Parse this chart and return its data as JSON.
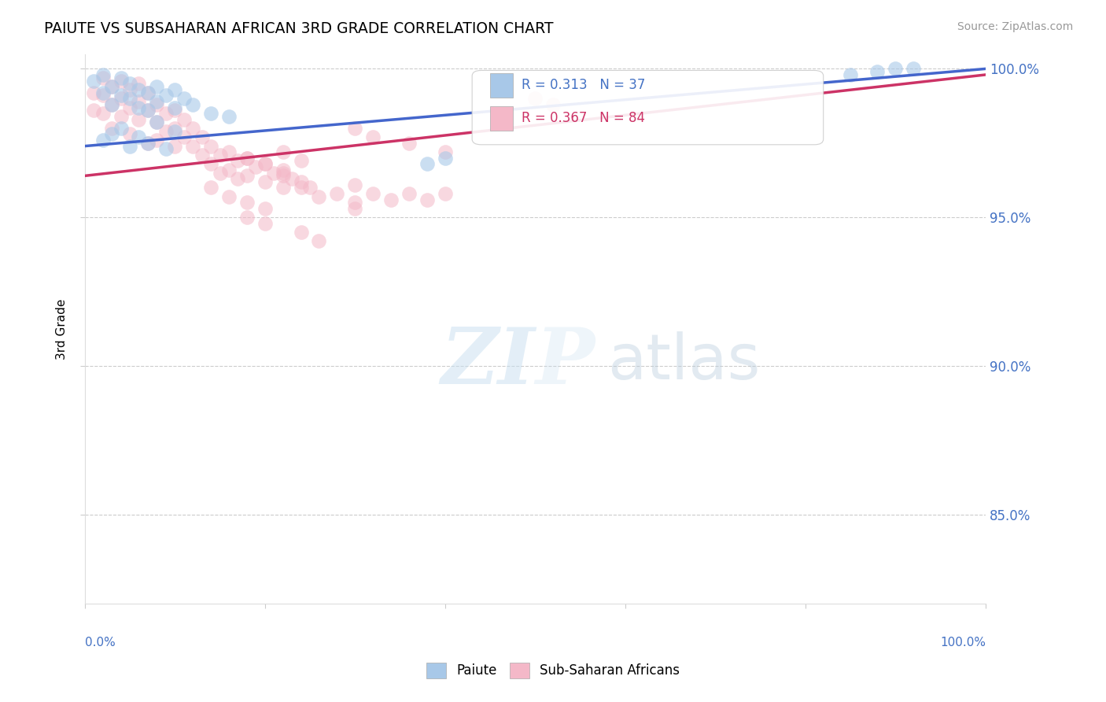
{
  "title": "PAIUTE VS SUBSAHARAN AFRICAN 3RD GRADE CORRELATION CHART",
  "source": "Source: ZipAtlas.com",
  "ylabel": "3rd Grade",
  "xlim": [
    0.0,
    1.0
  ],
  "ylim": [
    0.82,
    1.005
  ],
  "yticks": [
    0.85,
    0.9,
    0.95,
    1.0
  ],
  "ytick_labels": [
    "85.0%",
    "90.0%",
    "95.0%",
    "100.0%"
  ],
  "legend_entries": [
    "Paiute",
    "Sub-Saharan Africans"
  ],
  "blue_R": 0.313,
  "blue_N": 37,
  "pink_R": 0.367,
  "pink_N": 84,
  "blue_color": "#a8c8e8",
  "pink_color": "#f4b8c8",
  "blue_line_color": "#4466cc",
  "pink_line_color": "#cc3366",
  "blue_line_start_y": 0.974,
  "blue_line_end_y": 1.0,
  "pink_line_start_y": 0.964,
  "pink_line_end_y": 0.998,
  "blue_x": [
    0.01,
    0.02,
    0.02,
    0.03,
    0.03,
    0.04,
    0.04,
    0.05,
    0.05,
    0.06,
    0.06,
    0.07,
    0.07,
    0.08,
    0.08,
    0.09,
    0.1,
    0.1,
    0.11,
    0.12,
    0.14,
    0.16,
    0.02,
    0.03,
    0.05,
    0.06,
    0.07,
    0.09,
    0.04,
    0.08,
    0.1,
    0.38,
    0.4,
    0.85,
    0.88,
    0.9,
    0.92
  ],
  "blue_y": [
    0.996,
    0.992,
    0.998,
    0.988,
    0.994,
    0.991,
    0.997,
    0.99,
    0.995,
    0.987,
    0.993,
    0.986,
    0.992,
    0.989,
    0.994,
    0.991,
    0.987,
    0.993,
    0.99,
    0.988,
    0.985,
    0.984,
    0.976,
    0.978,
    0.974,
    0.977,
    0.975,
    0.973,
    0.98,
    0.982,
    0.979,
    0.968,
    0.97,
    0.998,
    0.999,
    1.0,
    1.0
  ],
  "pink_x": [
    0.01,
    0.01,
    0.02,
    0.02,
    0.02,
    0.03,
    0.03,
    0.03,
    0.04,
    0.04,
    0.04,
    0.05,
    0.05,
    0.05,
    0.06,
    0.06,
    0.06,
    0.07,
    0.07,
    0.07,
    0.08,
    0.08,
    0.08,
    0.09,
    0.09,
    0.1,
    0.1,
    0.1,
    0.11,
    0.11,
    0.12,
    0.12,
    0.13,
    0.13,
    0.14,
    0.14,
    0.15,
    0.15,
    0.16,
    0.16,
    0.17,
    0.17,
    0.18,
    0.18,
    0.19,
    0.2,
    0.2,
    0.21,
    0.22,
    0.22,
    0.23,
    0.24,
    0.25,
    0.26,
    0.28,
    0.3,
    0.3,
    0.32,
    0.34,
    0.36,
    0.38,
    0.4,
    0.3,
    0.32,
    0.36,
    0.4,
    0.22,
    0.24,
    0.5,
    0.52,
    0.22,
    0.24,
    0.14,
    0.16,
    0.18,
    0.2,
    0.3,
    0.18,
    0.2,
    0.22,
    0.18,
    0.2,
    0.24,
    0.26
  ],
  "pink_y": [
    0.992,
    0.986,
    0.991,
    0.985,
    0.997,
    0.988,
    0.994,
    0.98,
    0.99,
    0.984,
    0.996,
    0.987,
    0.993,
    0.978,
    0.989,
    0.983,
    0.995,
    0.986,
    0.992,
    0.975,
    0.988,
    0.982,
    0.976,
    0.985,
    0.979,
    0.986,
    0.98,
    0.974,
    0.983,
    0.977,
    0.98,
    0.974,
    0.977,
    0.971,
    0.974,
    0.968,
    0.971,
    0.965,
    0.972,
    0.966,
    0.969,
    0.963,
    0.97,
    0.964,
    0.967,
    0.968,
    0.962,
    0.965,
    0.966,
    0.96,
    0.963,
    0.96,
    0.96,
    0.957,
    0.958,
    0.961,
    0.955,
    0.958,
    0.956,
    0.958,
    0.956,
    0.958,
    0.98,
    0.977,
    0.975,
    0.972,
    0.972,
    0.969,
    0.99,
    0.988,
    0.964,
    0.962,
    0.96,
    0.957,
    0.955,
    0.953,
    0.953,
    0.97,
    0.968,
    0.965,
    0.95,
    0.948,
    0.945,
    0.942
  ]
}
